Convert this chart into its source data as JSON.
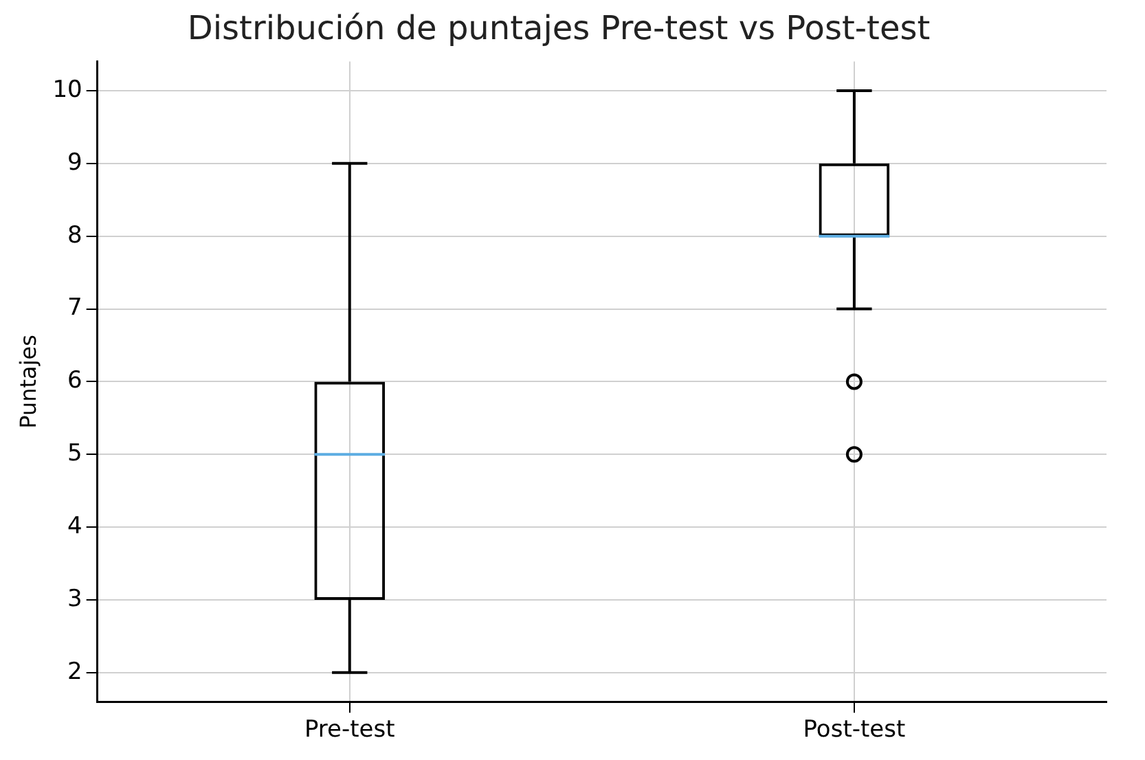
{
  "chart_data": {
    "type": "box",
    "title": "Distribución de puntajes Pre-test vs Post-test",
    "ylabel": "Puntajes",
    "categories": [
      "Pre-test",
      "Post-test"
    ],
    "boxes": [
      {
        "low": 2,
        "q1": 3,
        "median": 5,
        "q3": 6,
        "high": 9
      },
      {
        "low": 7,
        "q1": 8,
        "median": 8,
        "q3": 9,
        "high": 10,
        "outliers": [
          5,
          6
        ]
      }
    ],
    "ylim": [
      1.6,
      10.4
    ],
    "yticks": [
      2,
      3,
      4,
      5,
      6,
      7,
      8,
      9,
      10
    ],
    "grid": true
  }
}
